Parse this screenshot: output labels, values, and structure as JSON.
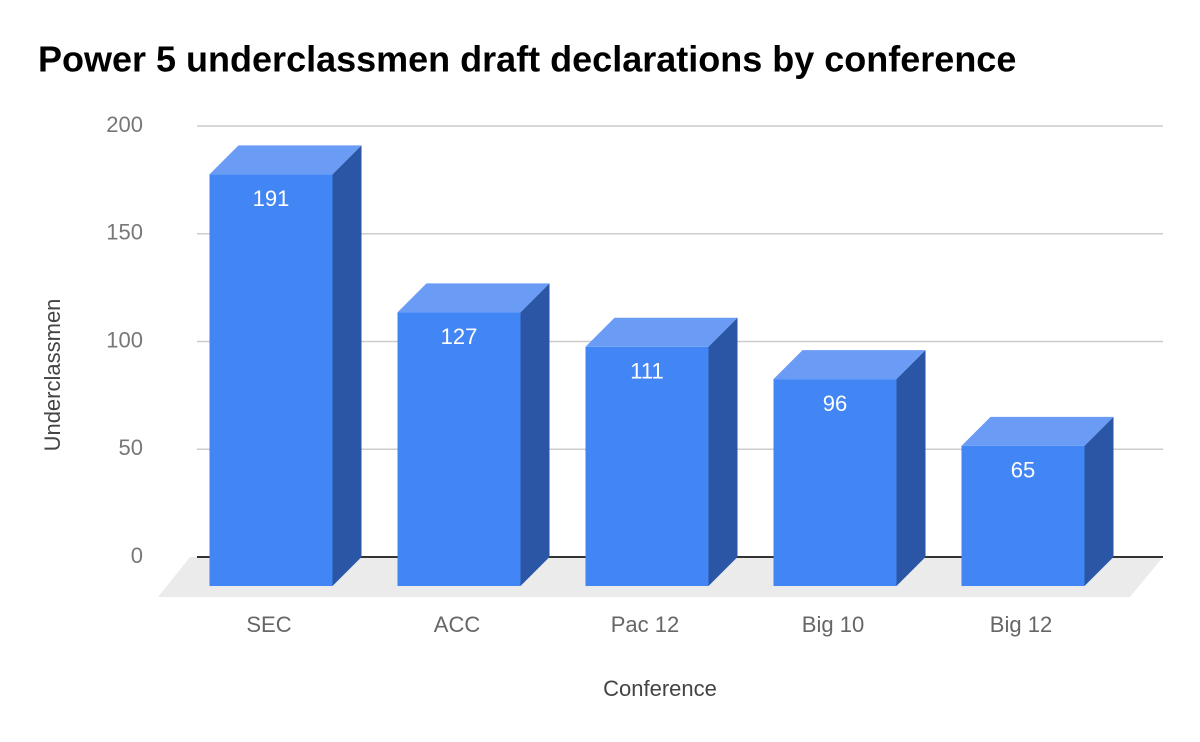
{
  "chart_data": {
    "type": "bar3d",
    "title": "Power 5 underclassmen draft declarations by conference",
    "x_label": "Conference",
    "y_label": "Underclassmen",
    "categories": [
      "SEC",
      "ACC",
      "Pac 12",
      "Big 10",
      "Big 12"
    ],
    "values": [
      191,
      127,
      111,
      96,
      65
    ],
    "color": "#4285f4",
    "ylim": [
      0,
      200
    ],
    "yticks": [
      0,
      50,
      100,
      150,
      200
    ],
    "grid": true
  }
}
